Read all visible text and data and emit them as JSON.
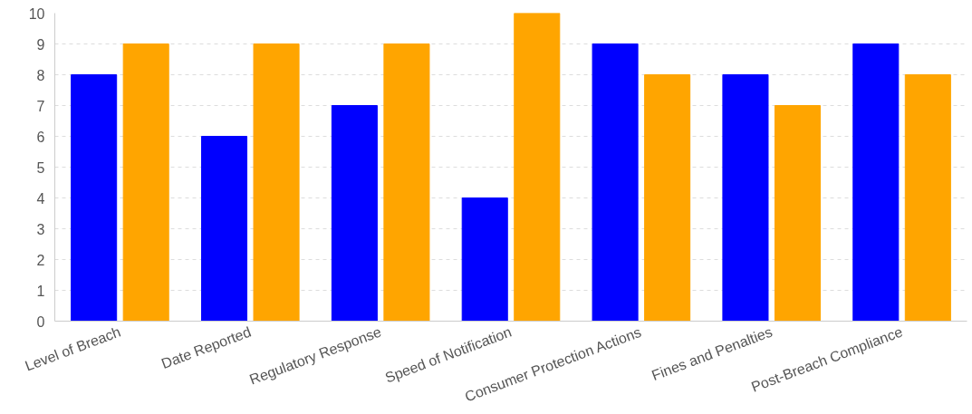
{
  "chart_data": {
    "type": "bar",
    "categories": [
      "Level of Breach",
      "Date Reported",
      "Regulatory Response",
      "Speed of Notification",
      "Consumer Protection Actions",
      "Fines and Penalties",
      "Post-Breach Compliance"
    ],
    "series": [
      {
        "color": "#0000ff",
        "values": [
          8,
          6,
          7,
          4,
          9,
          8,
          9
        ]
      },
      {
        "color": "#ffa500",
        "values": [
          9,
          9,
          9,
          10,
          8,
          7,
          8
        ]
      }
    ],
    "ylim": [
      0,
      10
    ],
    "yticks": [
      0,
      1,
      2,
      3,
      4,
      5,
      6,
      7,
      8,
      9,
      10
    ],
    "grid": "y"
  }
}
